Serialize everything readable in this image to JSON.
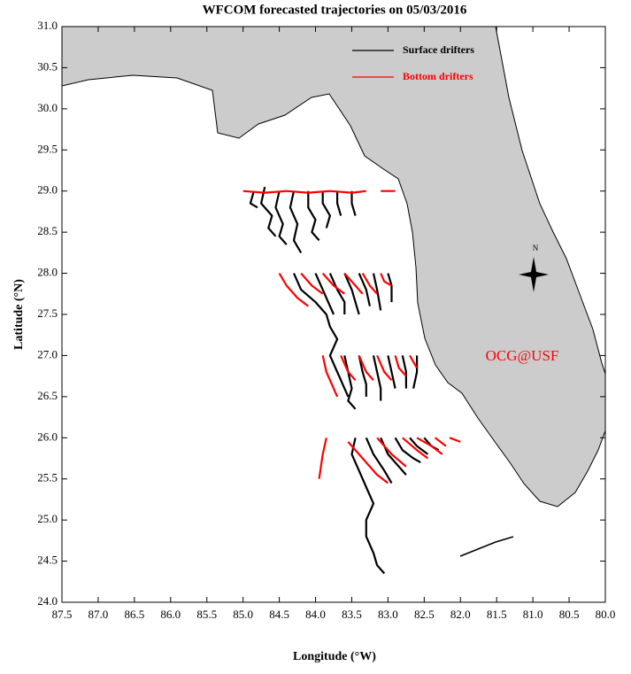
{
  "chart_data": {
    "type": "map",
    "title": "WFCOM forecasted trajectories on 05/03/2016",
    "xlabel": "Longitude (°W)",
    "ylabel": "Latitude (°N)",
    "xlim": [
      87.5,
      80.0
    ],
    "ylim": [
      24.0,
      31.0
    ],
    "xticks": [
      87.5,
      {
        "value": 87,
        "label": "87.0"
      },
      86.5,
      {
        "value": 86,
        "label": "86.0"
      },
      85.5,
      {
        "value": 85,
        "label": "85.0"
      },
      84.5,
      {
        "value": 84,
        "label": "84.0"
      },
      83.5,
      {
        "value": 83,
        "label": "83.0"
      },
      82.5,
      {
        "value": 82,
        "label": "82.0"
      },
      81.5,
      {
        "value": 81,
        "label": "81.0"
      },
      80.5,
      {
        "value": 80,
        "label": "80.0"
      }
    ],
    "yticks": [
      {
        "value": 24,
        "label": "24.0"
      },
      24.5,
      {
        "value": 25,
        "label": "25.0"
      },
      25.5,
      {
        "value": 26,
        "label": "26.0"
      },
      26.5,
      {
        "value": 27,
        "label": "27.0"
      },
      27.5,
      {
        "value": 28,
        "label": "28.0"
      },
      28.5,
      {
        "value": 29,
        "label": "29.0"
      },
      29.5,
      {
        "value": 30,
        "label": "30.0"
      },
      30.5,
      {
        "value": 31,
        "label": "31.0"
      }
    ],
    "legend": "upper right",
    "annotation": "OCG@USF",
    "north_label": "N",
    "series": [
      {
        "name": "Surface drifters",
        "color": "#000000",
        "x": [
          84.85,
          84.9,
          84.8,
          null,
          84.7,
          84.75,
          84.6,
          84.65,
          84.55,
          null,
          84.5,
          84.55,
          84.45,
          84.5,
          84.4,
          null,
          84.3,
          84.35,
          84.25,
          84.3,
          84.2,
          null,
          84.1,
          84.1,
          84.0,
          84.05,
          83.95,
          null,
          83.9,
          83.9,
          83.8,
          83.85,
          null,
          83.7,
          83.7,
          83.65,
          null,
          83.5,
          83.5,
          83.45,
          null,
          84.3,
          84.2,
          84.0,
          83.85,
          83.8,
          83.7,
          83.8,
          83.7,
          83.6,
          83.55,
          null,
          84.0,
          83.9,
          83.8,
          83.75,
          null,
          83.8,
          83.7,
          83.6,
          83.6,
          null,
          83.6,
          83.5,
          83.45,
          83.4,
          null,
          83.4,
          83.3,
          83.25,
          null,
          83.2,
          83.15,
          83.1,
          null,
          83.0,
          82.95,
          82.95,
          null,
          83.6,
          83.55,
          83.5,
          83.55,
          83.45,
          null,
          83.4,
          83.35,
          83.3,
          83.3,
          null,
          83.2,
          83.15,
          83.1,
          83.1,
          null,
          83.0,
          82.95,
          82.9,
          null,
          82.8,
          82.75,
          82.75,
          null,
          82.6,
          82.6,
          82.65,
          null,
          83.45,
          83.5,
          83.4,
          83.3,
          83.2,
          83.3,
          83.3,
          83.2,
          83.15,
          83.05,
          null,
          83.3,
          83.2,
          83.05,
          82.95,
          null,
          83.1,
          83.0,
          82.85,
          82.75,
          null,
          82.9,
          82.8,
          82.65,
          82.55,
          null,
          82.7,
          82.6,
          82.45,
          null,
          82.5,
          82.4,
          82.3
        ],
        "y": [
          29.0,
          28.85,
          28.8,
          null,
          29.05,
          28.85,
          28.7,
          28.55,
          28.45,
          null,
          29.0,
          28.8,
          28.6,
          28.45,
          28.35,
          null,
          29.0,
          28.8,
          28.6,
          28.4,
          28.25,
          null,
          29.0,
          28.8,
          28.65,
          28.5,
          28.4,
          null,
          29.0,
          28.85,
          28.7,
          28.55,
          null,
          29.0,
          28.85,
          28.7,
          null,
          29.0,
          28.85,
          28.7,
          null,
          28.0,
          27.8,
          27.65,
          27.5,
          27.35,
          27.2,
          27.0,
          26.8,
          26.6,
          26.5,
          null,
          28.0,
          27.8,
          27.6,
          27.5,
          null,
          28.0,
          27.8,
          27.65,
          27.5,
          null,
          28.0,
          27.8,
          27.65,
          27.5,
          null,
          28.0,
          27.8,
          27.6,
          null,
          28.0,
          27.8,
          27.55,
          null,
          28.0,
          27.85,
          27.65,
          null,
          27.0,
          26.8,
          26.6,
          26.45,
          26.35,
          null,
          27.0,
          26.8,
          26.65,
          26.5,
          null,
          27.0,
          26.8,
          26.6,
          26.45,
          null,
          27.0,
          26.8,
          26.6,
          null,
          27.0,
          26.8,
          26.6,
          null,
          27.0,
          26.8,
          26.6,
          null,
          26.0,
          25.8,
          25.6,
          25.4,
          25.2,
          25.0,
          24.8,
          24.6,
          24.45,
          24.35,
          null,
          26.0,
          25.8,
          25.6,
          25.45,
          null,
          26.0,
          25.8,
          25.65,
          25.55,
          null,
          26.0,
          25.85,
          25.75,
          25.7,
          null,
          26.0,
          25.9,
          25.8,
          null,
          26.0,
          25.9,
          25.85
        ]
      },
      {
        "name": "Bottom drifters",
        "color": "#ff0000",
        "x": [
          85.0,
          84.7,
          84.4,
          84.1,
          83.8,
          83.5,
          83.3,
          null,
          83.1,
          82.9,
          null,
          84.5,
          84.4,
          84.25,
          84.1,
          null,
          84.2,
          84.05,
          83.9,
          null,
          83.9,
          83.75,
          83.6,
          null,
          83.6,
          83.45,
          83.35,
          null,
          83.35,
          83.25,
          83.15,
          null,
          83.1,
          83.05,
          82.95,
          null,
          83.9,
          83.85,
          83.75,
          83.7,
          null,
          83.65,
          83.55,
          83.45,
          null,
          83.4,
          83.3,
          83.2,
          null,
          83.15,
          83.05,
          82.95,
          null,
          82.9,
          82.85,
          82.75,
          null,
          82.7,
          82.6,
          null,
          83.85,
          83.9,
          83.95,
          null,
          83.55,
          83.35,
          83.15,
          83.0,
          null,
          83.15,
          82.95,
          82.75,
          null,
          82.8,
          82.6,
          82.45,
          null,
          82.6,
          82.4,
          82.25,
          null,
          82.35,
          82.2,
          null,
          82.15,
          82.0
        ],
        "y": [
          29.0,
          28.98,
          29.0,
          28.98,
          29.0,
          28.98,
          29.0,
          null,
          29.0,
          29.0,
          null,
          28.0,
          27.85,
          27.7,
          27.6,
          null,
          28.0,
          27.85,
          27.75,
          null,
          28.0,
          27.85,
          27.75,
          null,
          28.0,
          27.85,
          27.75,
          null,
          28.0,
          27.85,
          27.75,
          null,
          28.0,
          27.9,
          27.85,
          null,
          27.0,
          26.8,
          26.6,
          26.5,
          null,
          27.0,
          26.8,
          26.7,
          null,
          27.0,
          26.8,
          26.7,
          null,
          27.0,
          26.8,
          26.7,
          null,
          27.0,
          26.85,
          26.75,
          null,
          27.0,
          26.85,
          null,
          26.0,
          25.8,
          25.5,
          null,
          25.95,
          25.75,
          25.55,
          25.45,
          null,
          26.0,
          25.8,
          25.65,
          null,
          26.0,
          25.85,
          25.75,
          null,
          26.0,
          25.9,
          25.8,
          null,
          26.0,
          25.9,
          null,
          26.0,
          25.95
        ]
      }
    ]
  }
}
